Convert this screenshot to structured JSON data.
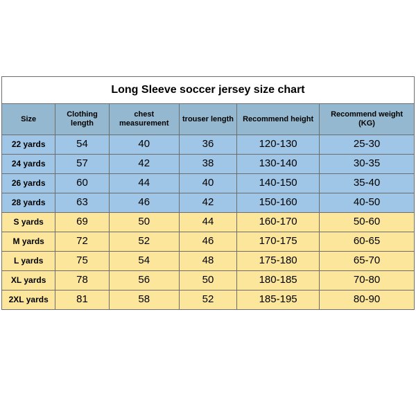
{
  "table": {
    "type": "table",
    "title": "Long Sleeve soccer jersey size chart",
    "columns": [
      "Size",
      "Clothing length",
      "chest measurement",
      "trouser length",
      "Recommend height",
      "Recommend weight (KG)"
    ],
    "column_widths_pct": [
      13,
      13,
      17,
      14,
      20,
      23
    ],
    "header_bg": "#93b8cf",
    "title_bg": "#ffffff",
    "border_color": "#6d6d6d",
    "title_fontsize": 16,
    "header_fontsize": 11,
    "size_fontsize": 12,
    "data_fontsize": 15,
    "groups": {
      "blue": "#9fc6e6",
      "yellow": "#fbe69c"
    },
    "rows": [
      {
        "group": "blue",
        "size": "22 yards",
        "clothing": "54",
        "chest": "40",
        "trouser": "36",
        "height": "120-130",
        "weight": "25-30"
      },
      {
        "group": "blue",
        "size": "24 yards",
        "clothing": "57",
        "chest": "42",
        "trouser": "38",
        "height": "130-140",
        "weight": "30-35"
      },
      {
        "group": "blue",
        "size": "26 yards",
        "clothing": "60",
        "chest": "44",
        "trouser": "40",
        "height": "140-150",
        "weight": "35-40"
      },
      {
        "group": "blue",
        "size": "28 yards",
        "clothing": "63",
        "chest": "46",
        "trouser": "42",
        "height": "150-160",
        "weight": "40-50"
      },
      {
        "group": "yellow",
        "size": "S yards",
        "clothing": "69",
        "chest": "50",
        "trouser": "44",
        "height": "160-170",
        "weight": "50-60"
      },
      {
        "group": "yellow",
        "size": "M yards",
        "clothing": "72",
        "chest": "52",
        "trouser": "46",
        "height": "170-175",
        "weight": "60-65"
      },
      {
        "group": "yellow",
        "size": "L yards",
        "clothing": "75",
        "chest": "54",
        "trouser": "48",
        "height": "175-180",
        "weight": "65-70"
      },
      {
        "group": "yellow",
        "size": "XL yards",
        "clothing": "78",
        "chest": "56",
        "trouser": "50",
        "height": "180-185",
        "weight": "70-80"
      },
      {
        "group": "yellow",
        "size": "2XL yards",
        "clothing": "81",
        "chest": "58",
        "trouser": "52",
        "height": "185-195",
        "weight": "80-90"
      }
    ]
  }
}
